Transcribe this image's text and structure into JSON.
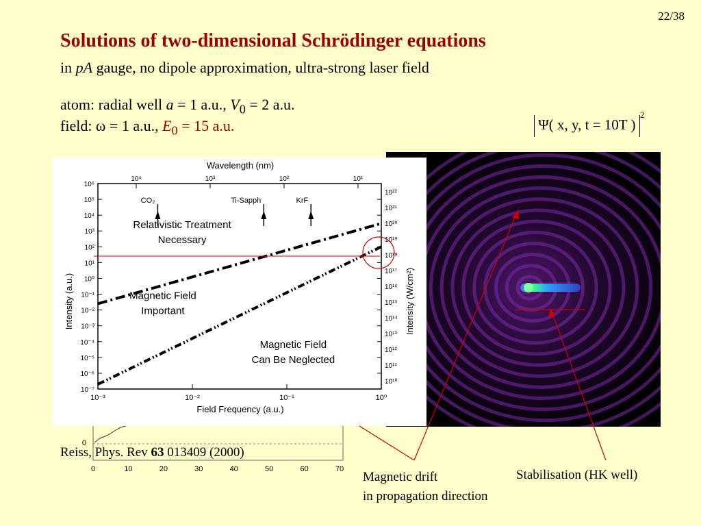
{
  "slide": {
    "page_number": "22/38",
    "title": "Solutions of two-dimensional Schrödinger equations",
    "subtitle": {
      "pre": "in ",
      "italic": "pA",
      "post": " gauge, no dipole approximation, ultra-strong laser field"
    },
    "atom": {
      "pre": "atom: radial well ",
      "a_sym": "a",
      "a_val": " = 1 a.u., ",
      "v_sym": "V",
      "v_sub": "0",
      "v_val": " = 2 a.u."
    },
    "field": {
      "pre": "field:  ω = 1 a.u., ",
      "e_sym": "E",
      "e_sub": "0",
      "e_val": " = 15 a.u."
    },
    "psi_formula": {
      "body": "Ψ( x, y, t = 10T )",
      "exponent": "2"
    },
    "reference": {
      "pre": "Reiss, Phys. Rev ",
      "bold": "63",
      "post": " 013409 (2000)"
    },
    "caption_drift": {
      "line1": "Magnetic drift",
      "line2": "in propagation direction"
    },
    "caption_stab": "Stabilisation (HK well)",
    "colors": {
      "title": "#990000",
      "background": "#ffffcc",
      "annotation": "#cc0000"
    }
  },
  "background_plot": {
    "x_ticks": [
      "0",
      "10",
      "20",
      "30",
      "40",
      "50",
      "60",
      "70"
    ],
    "y_label_zero": "0"
  },
  "chart_data": {
    "type": "line",
    "title": "",
    "top_axis_label": "Wavelength  (nm)",
    "top_ticks": [
      "10⁴",
      "10³",
      "10²",
      "10¹"
    ],
    "xlabel": "Field Frequency  (a.u.)",
    "ylabel": "Intensity  (a.u.)",
    "right_ylabel": "Intensity  (W/cm²)",
    "x_scale": "log",
    "xlim": [
      0.001,
      1
    ],
    "x_ticks": [
      "10⁻³",
      "10⁻²",
      "10⁻¹",
      "10⁰"
    ],
    "y_scale": "log",
    "ylim": [
      1e-07,
      1000000.0
    ],
    "y_ticks": [
      "10⁶",
      "10⁵",
      "10⁴",
      "10³",
      "10²",
      "10¹",
      "10⁰",
      "10⁻¹",
      "10⁻²",
      "10⁻³",
      "10⁻⁴",
      "10⁻⁵",
      "10⁻⁶",
      "10⁻⁷"
    ],
    "right_y_ticks": [
      "10²²",
      "10²¹",
      "10²⁰",
      "10¹⁹",
      "10¹⁸",
      "10¹⁷",
      "10¹⁶",
      "10¹⁵",
      "10¹⁴",
      "10¹³",
      "10¹²",
      "10¹¹",
      "10¹⁰"
    ],
    "lasers": [
      {
        "name": "CO₂",
        "x": 0.0043
      },
      {
        "name": "Ti-Sapph",
        "x": 0.057
      },
      {
        "name": "KrF",
        "x": 0.18
      }
    ],
    "series": [
      {
        "style": "dash-dot",
        "x": [
          0.001,
          1
        ],
        "y": [
          0.025,
          3000
        ]
      },
      {
        "style": "dash-dot-dot",
        "x": [
          0.001,
          1
        ],
        "y": [
          2e-07,
          100
        ]
      }
    ],
    "region_labels": [
      {
        "lines": [
          "Relativistic Treatment",
          "Necessary"
        ]
      },
      {
        "lines": [
          "Magnetic Field",
          "Important"
        ]
      },
      {
        "lines": [
          "Magnetic Field",
          "Can Be Neglected"
        ]
      }
    ],
    "annotation_intensity": 30
  }
}
